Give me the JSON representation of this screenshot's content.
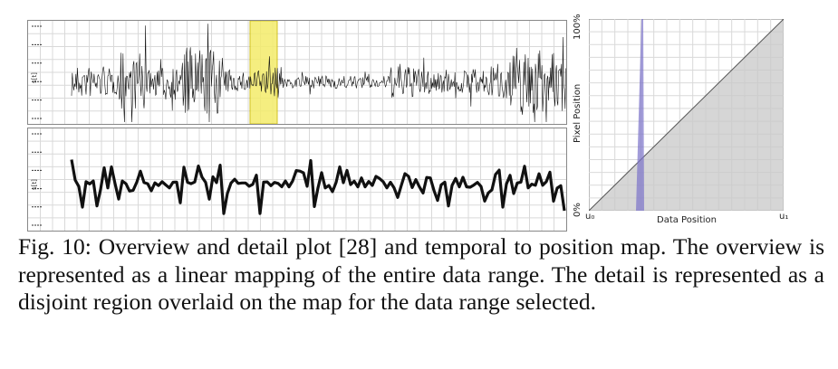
{
  "figure": {
    "overview_ylabel": "s[t]",
    "detail_ylabel": "s[t]",
    "highlight_color": "#f4ec6a",
    "selection_color": "#7b72c9",
    "map": {
      "x_label": "Data Position",
      "y_label": "Pixel Position",
      "x_start": "u₀",
      "x_end": "u₁",
      "y_bottom": "0%",
      "y_top": "100%"
    }
  },
  "caption": {
    "text": "Fig. 10: Overview and detail plot [28] and temporal to position map. The overview is represented as a linear mapping of the entire data range. The detail is represented as a disjoint region overlaid on the map for the data range selected."
  }
}
